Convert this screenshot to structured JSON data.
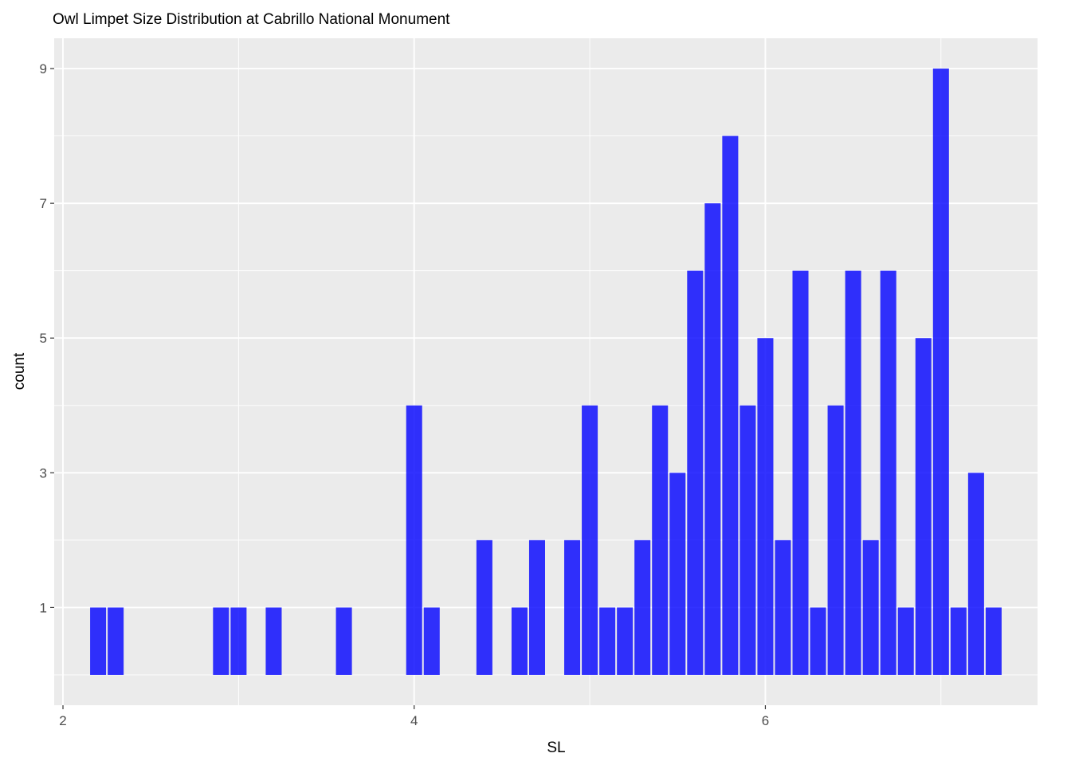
{
  "chart_data": {
    "type": "bar",
    "title": "Owl Limpet Size Distribution at Cabrillo National Monument",
    "xlabel": "SL",
    "ylabel": "count",
    "xlim": [
      1.95,
      7.55
    ],
    "ylim": [
      -0.45,
      9.45
    ],
    "baseline": 0,
    "bin_width": 0.1,
    "x_ticks": [
      2,
      4,
      6
    ],
    "x_minor_ticks": [
      3,
      5,
      7
    ],
    "y_ticks": [
      1,
      3,
      5,
      7,
      9
    ],
    "y_minor_ticks": [
      0,
      2,
      4,
      6,
      8
    ],
    "grid": true,
    "bar_color": "#0000ff",
    "bar_opacity": 0.8,
    "panel_color": "#ebebeb",
    "grid_color": "#ffffff",
    "x": [
      2.2,
      2.3,
      2.9,
      3.0,
      3.2,
      3.6,
      4.0,
      4.1,
      4.4,
      4.6,
      4.7,
      4.9,
      5.0,
      5.1,
      5.2,
      5.3,
      5.4,
      5.5,
      5.6,
      5.7,
      5.8,
      5.9,
      6.0,
      6.1,
      6.2,
      6.3,
      6.4,
      6.5,
      6.6,
      6.7,
      6.8,
      6.9,
      7.0,
      7.1,
      7.2,
      7.3
    ],
    "values": [
      1,
      1,
      1,
      1,
      1,
      1,
      4,
      1,
      2,
      1,
      2,
      2,
      4,
      1,
      1,
      2,
      4,
      3,
      6,
      7,
      8,
      4,
      5,
      2,
      6,
      1,
      4,
      6,
      2,
      6,
      1,
      5,
      9,
      1,
      3,
      1
    ]
  }
}
